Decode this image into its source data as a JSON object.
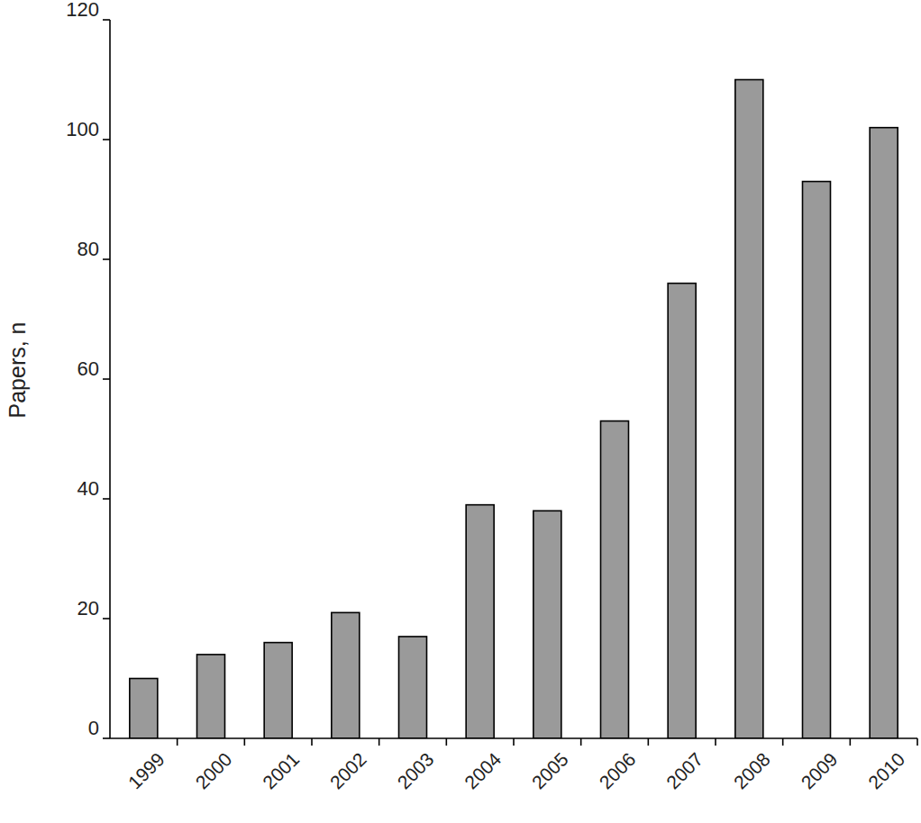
{
  "chart_data": {
    "type": "bar",
    "y_label": "Papers, n",
    "categories": [
      "1999",
      "2000",
      "2001",
      "2002",
      "2003",
      "2004",
      "2005",
      "2006",
      "2007",
      "2008",
      "2009",
      "2010"
    ],
    "values": [
      10,
      14,
      16,
      21,
      17,
      39,
      38,
      53,
      76,
      110,
      93,
      102
    ],
    "color": "#9a9a9a",
    "ylim": [
      0,
      120
    ],
    "yticks": [
      0,
      20,
      40,
      60,
      80,
      100,
      120
    ],
    "grid": false
  }
}
